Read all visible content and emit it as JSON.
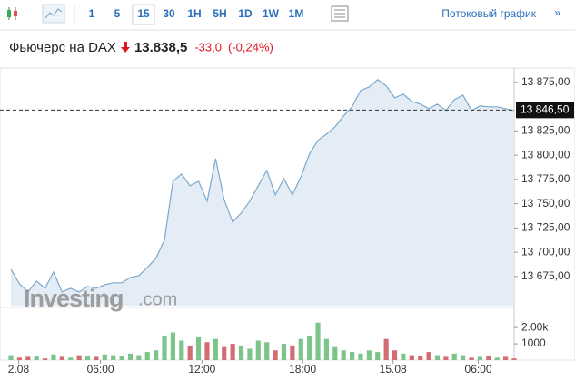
{
  "toolbar": {
    "intervals": [
      "1",
      "5",
      "15",
      "30",
      "1H",
      "5H",
      "1D",
      "1W",
      "1M"
    ],
    "selected": "15",
    "streaming_link": "Потоковый график",
    "streaming_arrow": "»"
  },
  "header": {
    "name": "Фьючерс на DAX",
    "price": "13.838,5",
    "change": "-33,0",
    "change_pct": "(-0,24%)"
  },
  "watermark": {
    "brand": "Investing",
    "suffix": ".com"
  },
  "chart_data": {
    "type": "area",
    "color": "#7aa9cf",
    "fill_color": "#e4edf5",
    "values": [
      13682.5,
      13667.5,
      13659.1,
      13670.3,
      13662.8,
      13679.7,
      13659.1,
      13662.8,
      13659.1,
      13664.7,
      13662.8,
      13666.6,
      13668.5,
      13668.5,
      13674.1,
      13675.9,
      13684.3,
      13693.7,
      13712.4,
      13773.1,
      13780.6,
      13768.5,
      13773.1,
      13752.6,
      13796.5,
      13754.4,
      13731.1,
      13740.4,
      13752.6,
      13768.5,
      13784.3,
      13759.1,
      13775.9,
      13759.1,
      13777.8,
      13801.2,
      13815.2,
      13821.7,
      13829.2,
      13840.4,
      13849.8,
      13866.6,
      13870.3,
      13877.8,
      13871.3,
      13859.1,
      13862.9,
      13855.4,
      13852.6,
      13847.9,
      13852.6,
      13846.0,
      13857.2,
      13861.9,
      13846.0,
      13850.7,
      13849.8,
      13849.8,
      13847.9,
      13846.0
    ],
    "xlim": [
      0,
      59
    ],
    "xticks": [
      {
        "value": 0.9,
        "label": "2.08"
      },
      {
        "value": 10.5,
        "label": "06:00"
      },
      {
        "value": 22.4,
        "label": "12:00"
      },
      {
        "value": 34.2,
        "label": "18:00"
      },
      {
        "value": 44.8,
        "label": "15.08"
      },
      {
        "value": 54.8,
        "label": "06:00"
      }
    ],
    "ylim": [
      13645,
      13887
    ],
    "yticks": [
      {
        "value": 13675,
        "label": "13 675,00"
      },
      {
        "value": 13700,
        "label": "13 700,00"
      },
      {
        "value": 13725,
        "label": "13 725,00"
      },
      {
        "value": 13750,
        "label": "13 750,00"
      },
      {
        "value": 13775,
        "label": "13 775,00"
      },
      {
        "value": 13800,
        "label": "13 800,00"
      },
      {
        "value": 13825,
        "label": "13 825,00"
      },
      {
        "value": 13875,
        "label": "13 875,00"
      }
    ],
    "grid": false,
    "last_price": {
      "value": 13846.5,
      "label": "13 846,50"
    },
    "volume": {
      "type": "bar",
      "up_color": "#7cc48a",
      "down_color": "#d36b72",
      "values": [
        300,
        150,
        200,
        250,
        100,
        350,
        200,
        150,
        300,
        250,
        200,
        350,
        300,
        250,
        400,
        300,
        500,
        600,
        1500,
        1700,
        1200,
        900,
        1400,
        1100,
        1300,
        800,
        1000,
        900,
        700,
        1200,
        1100,
        600,
        1000,
        900,
        1300,
        1500,
        2300,
        1300,
        800,
        600,
        500,
        400,
        600,
        500,
        1300,
        600,
        400,
        300,
        250,
        500,
        300,
        200,
        400,
        300,
        150,
        200,
        250,
        150,
        200,
        100
      ],
      "ylim": [
        0,
        2900
      ],
      "yticks": [
        {
          "value": 2000,
          "label": "2.00k"
        },
        {
          "value": 1000,
          "label": "1000"
        }
      ]
    }
  }
}
